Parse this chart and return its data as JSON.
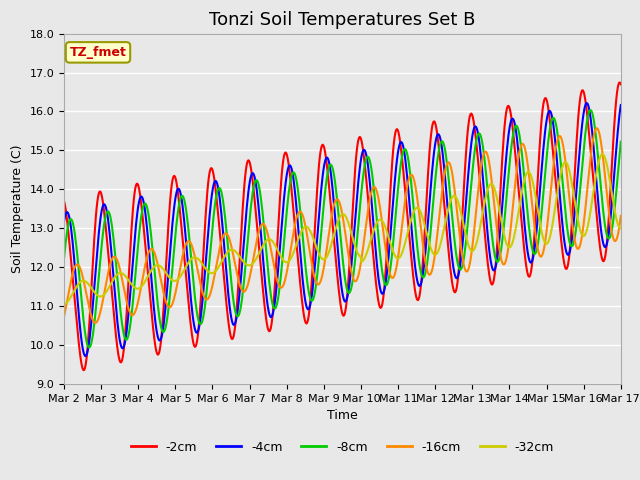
{
  "title": "Tonzi Soil Temperatures Set B",
  "xlabel": "Time",
  "ylabel": "Soil Temperature (C)",
  "ylim": [
    9.0,
    18.0
  ],
  "yticks": [
    9.0,
    10.0,
    11.0,
    12.0,
    13.0,
    14.0,
    15.0,
    16.0,
    17.0,
    18.0
  ],
  "xtick_labels": [
    "Mar 2",
    "Mar 3",
    "Mar 4",
    "Mar 5",
    "Mar 6",
    "Mar 7",
    "Mar 8",
    "Mar 9",
    "Mar 10",
    "Mar 11",
    "Mar 12",
    "Mar 13",
    "Mar 14",
    "Mar 15",
    "Mar 16",
    "Mar 17"
  ],
  "series_colors": [
    "#ff0000",
    "#0000ff",
    "#00cc00",
    "#ff8800",
    "#cccc00"
  ],
  "series_labels": [
    "-2cm",
    "-4cm",
    "-8cm",
    "-16cm",
    "-32cm"
  ],
  "line_width": 1.5,
  "fig_bg_color": "#e8e8e8",
  "plot_bg_color": "#e8e8e8",
  "legend_label": "TZ_fmet",
  "legend_bg": "#ffffcc",
  "legend_edge": "#999900",
  "title_fontsize": 13,
  "label_fontsize": 9,
  "tick_fontsize": 8
}
